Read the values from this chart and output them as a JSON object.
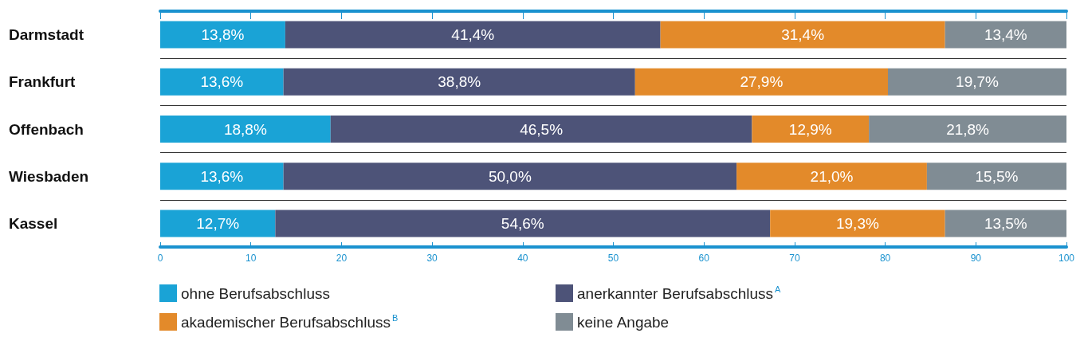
{
  "chart_data": {
    "type": "bar",
    "orientation": "horizontal",
    "stacked": true,
    "categories": [
      "Darmstadt",
      "Frankfurt",
      "Offenbach",
      "Wiesbaden",
      "Kassel"
    ],
    "series": [
      {
        "name": "ohne Berufsabschluss",
        "color": "#1aa3d6",
        "values": [
          13.8,
          13.6,
          18.8,
          13.6,
          12.7
        ],
        "value_labels": [
          "13,8%",
          "13,6%",
          "18,8%",
          "13,6%",
          "12,7%"
        ]
      },
      {
        "name": "anerkannter Berufsabschluss$^{A}$",
        "color": "#4d5378",
        "values": [
          41.4,
          38.8,
          46.5,
          50.0,
          54.6
        ],
        "value_labels": [
          "41,4%",
          "38,8%",
          "46,5%",
          "50,0%",
          "54,6%"
        ]
      },
      {
        "name": "akademischer Berufsabschluss$^{B}$",
        "color": "#e38a2a",
        "values": [
          31.4,
          27.9,
          12.9,
          21.0,
          19.3
        ],
        "value_labels": [
          "31,4%",
          "27,9%",
          "12,9%",
          "21,0%",
          "19,3%"
        ]
      },
      {
        "name": "keine Angabe",
        "color": "#808c94",
        "values": [
          13.4,
          19.7,
          21.8,
          15.5,
          13.5
        ],
        "value_labels": [
          "13,4%",
          "19,7%",
          "21,8%",
          "15,5%",
          "13,5%"
        ]
      }
    ],
    "xlim": [
      0,
      100
    ],
    "xticks": [
      0,
      10,
      20,
      30,
      40,
      50,
      60,
      70,
      80,
      90,
      100
    ],
    "grid": "y",
    "legend": "bottom"
  }
}
